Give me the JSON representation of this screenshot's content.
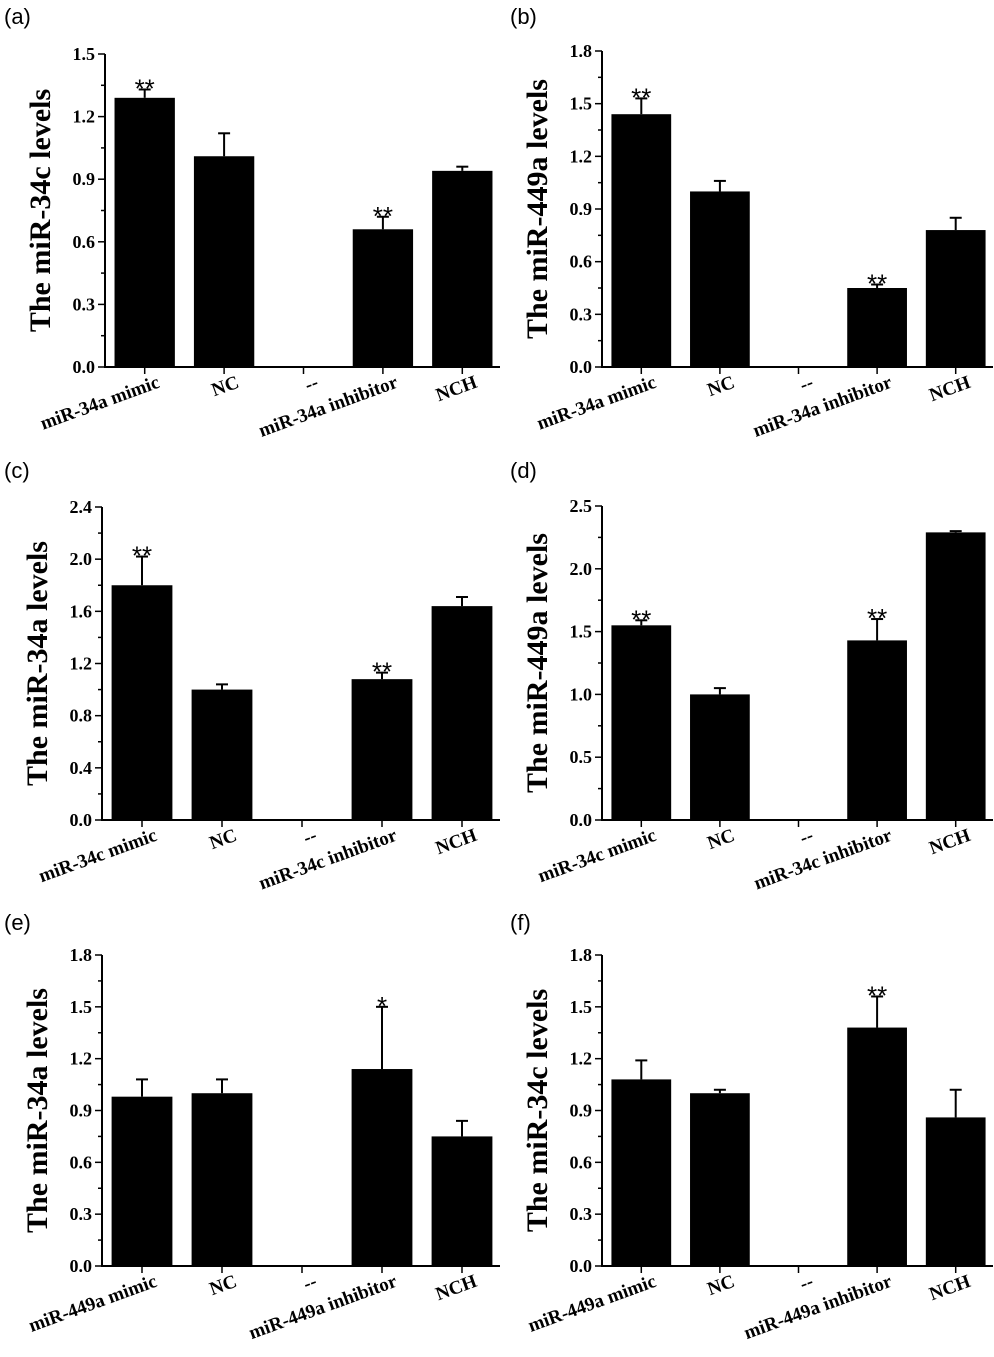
{
  "chart_data": [
    {
      "panel": "(a)",
      "type": "bar",
      "ylabel": "The miR-34c levels",
      "ylim": [
        0,
        1.5
      ],
      "yticks": [
        "0.0",
        "0.3",
        "0.6",
        "0.9",
        "1.2",
        "1.5"
      ],
      "categories": [
        "miR-34a mimic",
        "NC",
        "--",
        "miR-34a inhibitor",
        "NCH"
      ],
      "values": [
        1.29,
        1.01,
        null,
        0.66,
        0.94
      ],
      "errors": [
        0.04,
        0.11,
        null,
        0.06,
        0.02
      ],
      "annotations": [
        "**",
        "",
        "",
        "**",
        ""
      ]
    },
    {
      "panel": "(b)",
      "type": "bar",
      "ylabel": "The miR-449a levels",
      "ylim": [
        0,
        1.8
      ],
      "yticks": [
        "0.0",
        "0.3",
        "0.6",
        "0.9",
        "1.2",
        "1.5",
        "1.8"
      ],
      "categories": [
        "miR-34a mimic",
        "NC",
        "--",
        "miR-34a inhibitor",
        "NCH"
      ],
      "values": [
        1.44,
        1.0,
        null,
        0.45,
        0.78
      ],
      "errors": [
        0.09,
        0.06,
        null,
        0.02,
        0.07
      ],
      "annotations": [
        "**",
        "",
        "",
        "**",
        ""
      ]
    },
    {
      "panel": "(c)",
      "type": "bar",
      "ylabel": "The miR-34a levels",
      "ylim": [
        0,
        2.4
      ],
      "yticks": [
        "0.0",
        "0.4",
        "0.8",
        "1.2",
        "1.6",
        "2.0",
        "2.4"
      ],
      "categories": [
        "miR-34c mimic",
        "NC",
        "--",
        "miR-34c inhibitor",
        "NCH"
      ],
      "values": [
        1.8,
        1.0,
        null,
        1.08,
        1.64
      ],
      "errors": [
        0.22,
        0.04,
        null,
        0.05,
        0.07
      ],
      "annotations": [
        "**",
        "",
        "",
        "**",
        ""
      ]
    },
    {
      "panel": "(d)",
      "type": "bar",
      "ylabel": "The miR-449a levels",
      "ylim": [
        0,
        2.5
      ],
      "yticks": [
        "0.0",
        "0.5",
        "1.0",
        "1.5",
        "2.0",
        "2.5"
      ],
      "categories": [
        "miR-34c mimic",
        "NC",
        "--",
        "miR-34c inhibitor",
        "NCH"
      ],
      "values": [
        1.55,
        1.0,
        null,
        1.43,
        2.29
      ],
      "errors": [
        0.04,
        0.05,
        null,
        0.17,
        0.01
      ],
      "annotations": [
        "**",
        "",
        "",
        "**",
        ""
      ]
    },
    {
      "panel": "(e)",
      "type": "bar",
      "ylabel": "The miR-34a levels",
      "ylim": [
        0,
        1.8
      ],
      "yticks": [
        "0.0",
        "0.3",
        "0.6",
        "0.9",
        "1.2",
        "1.5",
        "1.8"
      ],
      "categories": [
        "miR-449a mimic",
        "NC",
        "--",
        "miR-449a inhibitor",
        "NCH"
      ],
      "values": [
        0.98,
        1.0,
        null,
        1.14,
        0.75
      ],
      "errors": [
        0.1,
        0.08,
        null,
        0.36,
        0.09
      ],
      "annotations": [
        "",
        "",
        "",
        "*",
        ""
      ]
    },
    {
      "panel": "(f)",
      "type": "bar",
      "ylabel": "The miR-34c levels",
      "ylim": [
        0,
        1.8
      ],
      "yticks": [
        "0.0",
        "0.3",
        "0.6",
        "0.9",
        "1.2",
        "1.5",
        "1.8"
      ],
      "categories": [
        "miR-449a mimic",
        "NC",
        "--",
        "miR-449a inhibitor",
        "NCH"
      ],
      "values": [
        1.08,
        1.0,
        null,
        1.38,
        0.86
      ],
      "errors": [
        0.11,
        0.02,
        null,
        0.18,
        0.16
      ],
      "annotations": [
        "",
        "",
        "",
        "**",
        ""
      ]
    }
  ],
  "colors": {
    "bar": "#000000",
    "background": "#ffffff"
  }
}
